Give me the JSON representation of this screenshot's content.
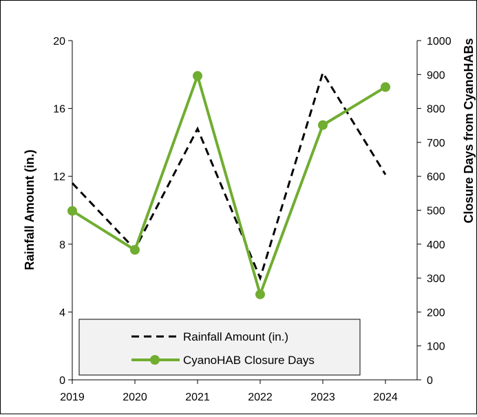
{
  "chart_data": {
    "type": "line",
    "x": [
      "2019",
      "2020",
      "2021",
      "2022",
      "2023",
      "2024"
    ],
    "ylabel": "Rainfall Amount (in.)",
    "y2label": "Closure Days from CyanoHABs",
    "ylim": [
      0,
      20
    ],
    "y2lim": [
      0,
      1000
    ],
    "yticks": [
      "0",
      "4",
      "8",
      "12",
      "16",
      "20"
    ],
    "y2ticks": [
      "0",
      "100",
      "200",
      "300",
      "400",
      "500",
      "600",
      "700",
      "800",
      "900",
      "1000"
    ],
    "grid": false,
    "legend_position": "bottom-left",
    "series": [
      {
        "name": "Rainfall Amount (in.)",
        "axis": "left",
        "style": "dashed",
        "color": "#000000",
        "values": [
          11.6,
          7.7,
          14.8,
          6.0,
          18.1,
          12.1
        ]
      },
      {
        "name": "CyanoHAB Closure Days",
        "axis": "right",
        "style": "solid-marker",
        "color": "#70AD31",
        "values": [
          498,
          383,
          896,
          252,
          751,
          863
        ]
      }
    ]
  }
}
